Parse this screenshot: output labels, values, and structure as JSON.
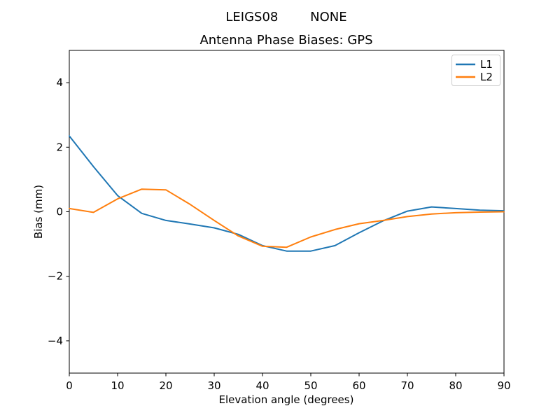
{
  "figure": {
    "suptitle": "LEIGS08        NONE",
    "background": "#ffffff"
  },
  "chart_data": {
    "type": "line",
    "title": "LEIGS08        NONE",
    "subtitle": "Antenna Phase Biases: GPS",
    "xlabel": "Elevation angle (degrees)",
    "ylabel": "Bias (mm)",
    "xlim": [
      0,
      90
    ],
    "ylim": [
      -5,
      5
    ],
    "xticks": [
      0,
      10,
      20,
      30,
      40,
      50,
      60,
      70,
      80,
      90
    ],
    "xtick_labels": [
      "0",
      "10",
      "20",
      "30",
      "40",
      "50",
      "60",
      "70",
      "80",
      "90"
    ],
    "yticks": [
      -4,
      -2,
      0,
      2,
      4
    ],
    "ytick_labels": [
      "−4",
      "−2",
      "0",
      "2",
      "4"
    ],
    "grid": false,
    "legend_position": "upper right",
    "x": [
      0,
      5,
      10,
      15,
      20,
      25,
      30,
      35,
      40,
      45,
      50,
      55,
      60,
      65,
      70,
      75,
      80,
      85,
      90
    ],
    "series": [
      {
        "name": "L1",
        "color": "#1f77b4",
        "values": [
          2.35,
          1.4,
          0.5,
          -0.05,
          -0.27,
          -0.38,
          -0.5,
          -0.7,
          -1.05,
          -1.22,
          -1.22,
          -1.05,
          -0.65,
          -0.28,
          0.02,
          0.15,
          0.1,
          0.05,
          0.03
        ]
      },
      {
        "name": "L2",
        "color": "#ff7f0e",
        "values": [
          0.1,
          -0.02,
          0.4,
          0.7,
          0.68,
          0.23,
          -0.27,
          -0.75,
          -1.07,
          -1.1,
          -0.78,
          -0.55,
          -0.37,
          -0.27,
          -0.15,
          -0.07,
          -0.03,
          -0.01,
          0.0
        ]
      }
    ]
  }
}
